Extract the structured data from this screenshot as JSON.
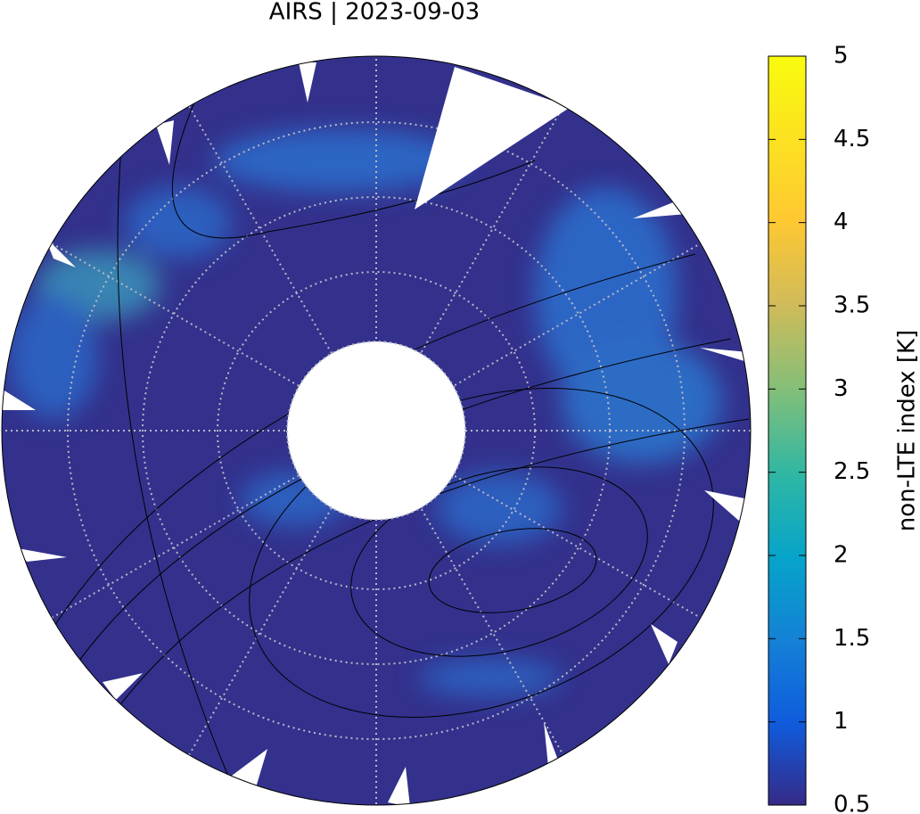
{
  "title": "AIRS | 2023-09-03",
  "colorbar": {
    "label": "non-LTE index [K]",
    "lim": [
      0.5,
      5
    ],
    "ticks": [
      0.5,
      1,
      1.5,
      2,
      2.5,
      3,
      3.5,
      4,
      4.5,
      5
    ]
  }
}
